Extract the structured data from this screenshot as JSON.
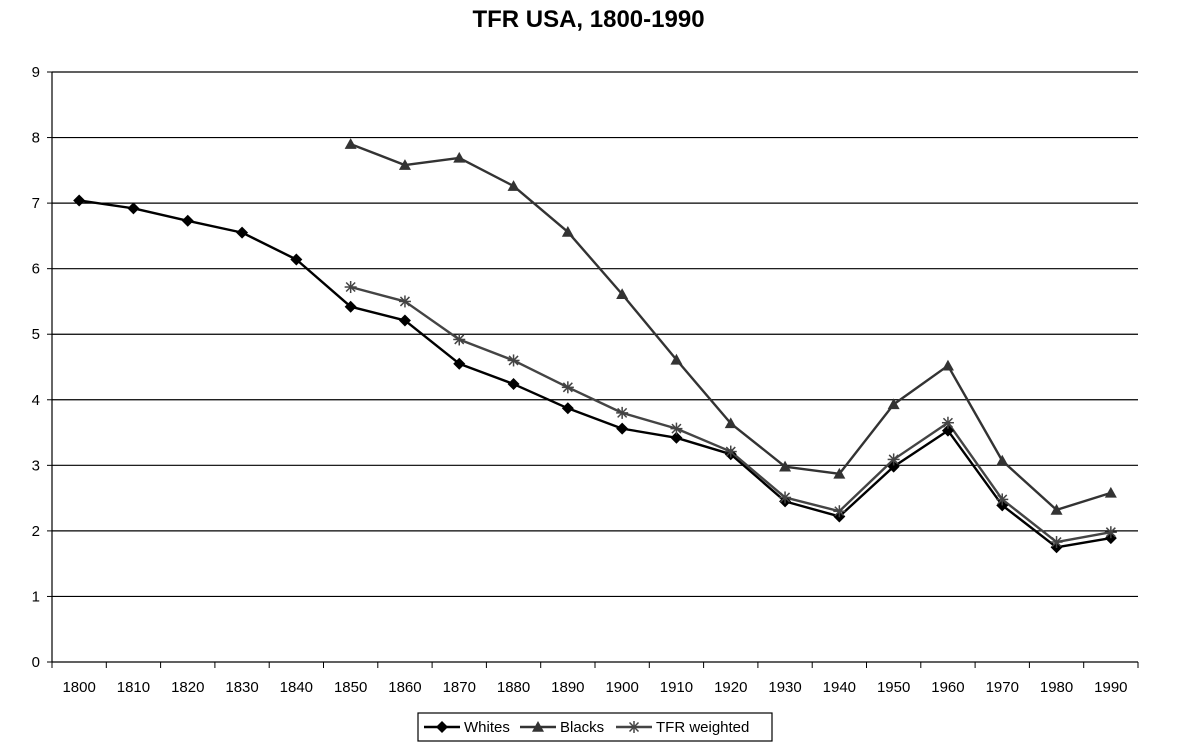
{
  "chart_data": {
    "type": "line",
    "title": "TFR USA, 1800-1990",
    "xlabel": "",
    "ylabel": "",
    "x": [
      1800,
      1810,
      1820,
      1830,
      1840,
      1850,
      1860,
      1870,
      1880,
      1890,
      1900,
      1910,
      1920,
      1930,
      1940,
      1950,
      1960,
      1970,
      1980,
      1990
    ],
    "ylim": [
      0,
      9
    ],
    "yticks": [
      "0",
      "1",
      "2",
      "3",
      "4",
      "5",
      "6",
      "7",
      "8",
      "9"
    ],
    "xticks": [
      "1800",
      "1810",
      "1820",
      "1830",
      "1840",
      "1850",
      "1860",
      "1870",
      "1880",
      "1890",
      "1900",
      "1910",
      "1920",
      "1930",
      "1940",
      "1950",
      "1960",
      "1970",
      "1980",
      "1990"
    ],
    "grid": "horizontal",
    "legend_position": "bottom",
    "series": [
      {
        "name": "Whites",
        "marker": "diamond",
        "color": "#000000",
        "values": [
          7.04,
          6.92,
          6.73,
          6.55,
          6.14,
          5.42,
          5.21,
          4.55,
          4.24,
          3.87,
          3.56,
          3.42,
          3.17,
          2.45,
          2.22,
          2.98,
          3.53,
          2.39,
          1.75,
          1.89
        ]
      },
      {
        "name": "Blacks",
        "marker": "triangle",
        "color": "#333333",
        "values": [
          null,
          null,
          null,
          null,
          null,
          7.9,
          7.58,
          7.69,
          7.26,
          6.56,
          5.61,
          4.61,
          3.64,
          2.98,
          2.87,
          3.93,
          4.52,
          3.07,
          2.32,
          2.58
        ]
      },
      {
        "name": "TFR weighted",
        "marker": "star",
        "color": "#444444",
        "values": [
          null,
          null,
          null,
          null,
          null,
          5.72,
          5.5,
          4.92,
          4.6,
          4.19,
          3.8,
          3.56,
          3.21,
          2.51,
          2.3,
          3.09,
          3.65,
          2.48,
          1.83,
          1.98
        ]
      }
    ]
  }
}
